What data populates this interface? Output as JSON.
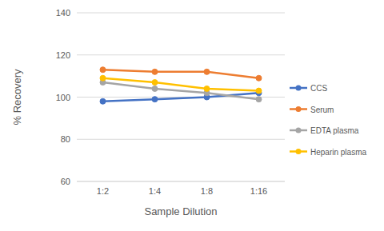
{
  "chart_data": {
    "type": "line",
    "x_label": "Sample Dilution",
    "y_label": "% Recovery",
    "categories": [
      "1:2",
      "1:4",
      "1:8",
      "1:16"
    ],
    "series": [
      {
        "name": "CCS",
        "color": "#4472c4",
        "values": [
          98,
          99,
          100,
          102
        ],
        "marker": "circle",
        "line_style": "solid"
      },
      {
        "name": "Serum",
        "color": "#ed7d31",
        "values": [
          113,
          112,
          112,
          109
        ],
        "marker": "circle",
        "line_style": "solid"
      },
      {
        "name": "EDTA plasma",
        "color": "#a5a5a5",
        "values": [
          107,
          104,
          102,
          99
        ],
        "marker": "circle",
        "line_style": "solid"
      },
      {
        "name": "Heparin plasma",
        "color": "#ffc000",
        "values": [
          109,
          107,
          104,
          103
        ],
        "marker": "circle",
        "line_style": "solid"
      }
    ],
    "ylim": [
      60,
      140
    ],
    "yticks": [
      60,
      80,
      100,
      120,
      140
    ],
    "grid": true,
    "legend": "right"
  }
}
